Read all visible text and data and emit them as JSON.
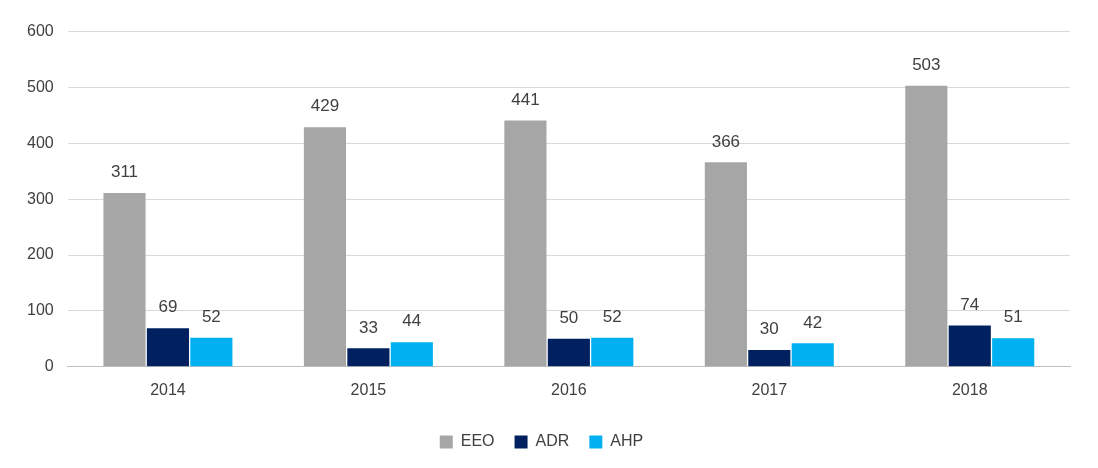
{
  "chart_data": {
    "type": "bar",
    "categories": [
      "2014",
      "2015",
      "2016",
      "2017",
      "2018"
    ],
    "series": [
      {
        "name": "EEO",
        "color": "#a6a6a6",
        "values": [
          311,
          429,
          441,
          366,
          503
        ]
      },
      {
        "name": "ADR",
        "color": "#002060",
        "values": [
          69,
          33,
          50,
          30,
          74
        ]
      },
      {
        "name": "AHP",
        "color": "#00b0f0",
        "values": [
          52,
          44,
          52,
          42,
          51
        ]
      }
    ],
    "ylim": [
      0,
      600
    ],
    "yticks": [
      0,
      100,
      200,
      300,
      400,
      500,
      600
    ],
    "grid": "y",
    "legend": "bottom",
    "data_labels": true
  }
}
